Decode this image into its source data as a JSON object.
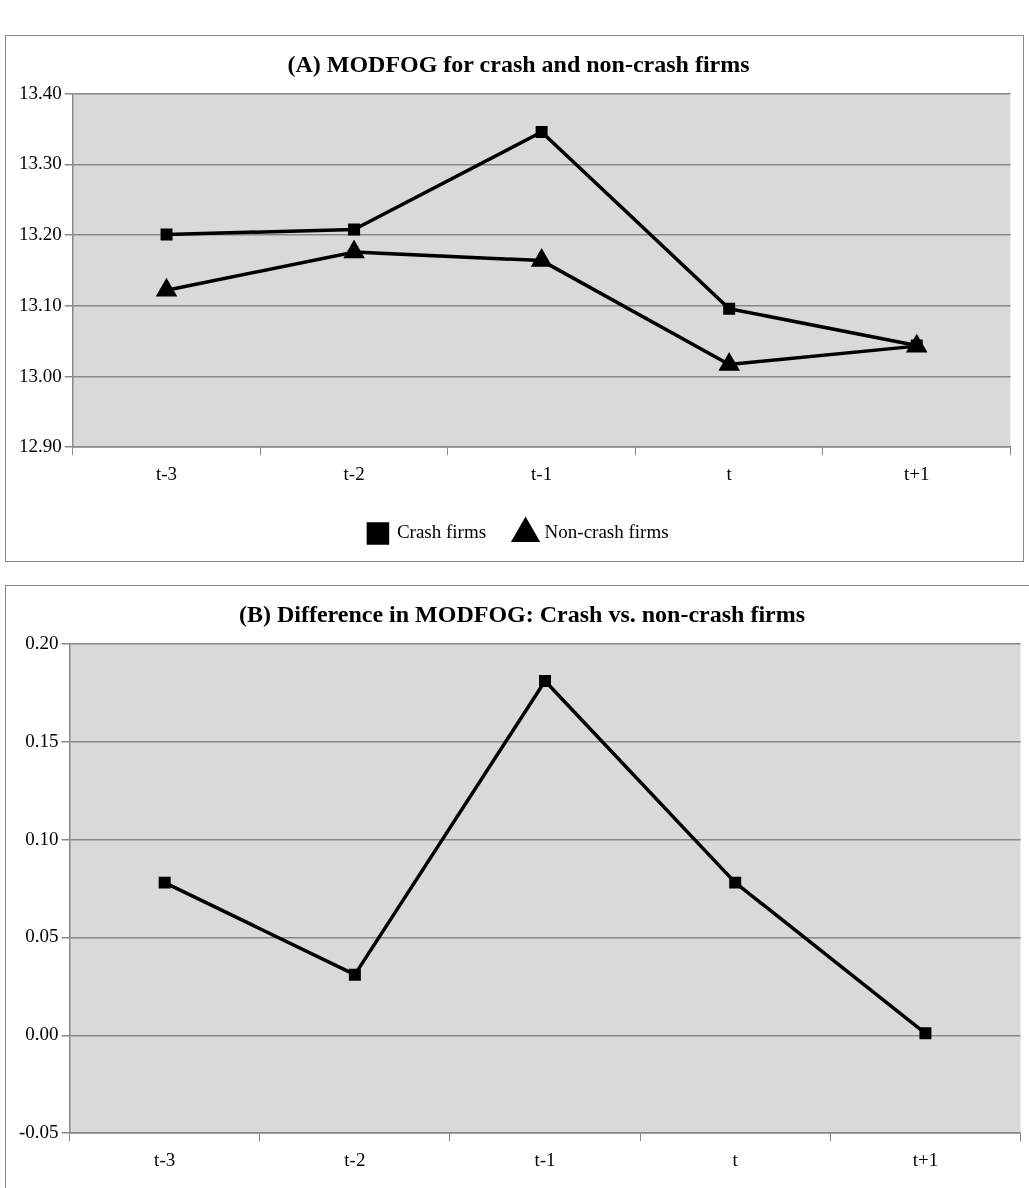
{
  "chart_data": [
    {
      "type": "line",
      "title": "(A) MODFOG for crash and non-crash firms",
      "categories": [
        "t-3",
        "t-2",
        "t-1",
        "t",
        "t+1"
      ],
      "series": [
        {
          "name": "Crash firms",
          "color": "#000000",
          "marker": "square",
          "values": [
            13.201,
            13.208,
            13.346,
            13.096,
            13.044
          ]
        },
        {
          "name": "Non-crash firms",
          "color": "#000000",
          "marker": "triangle",
          "values": [
            13.122,
            13.176,
            13.164,
            13.017,
            13.043
          ]
        }
      ],
      "ylim": [
        12.9,
        13.4
      ],
      "yticks": [
        {
          "value": 12.9,
          "label": "12.90"
        },
        {
          "value": 13.0,
          "label": "13.00"
        },
        {
          "value": 13.1,
          "label": "13.10"
        },
        {
          "value": 13.2,
          "label": "13.20"
        },
        {
          "value": 13.3,
          "label": "13.30"
        },
        {
          "value": 13.4,
          "label": "13.40"
        }
      ],
      "grid": "y",
      "legend": "bottom",
      "line_style": "solid"
    },
    {
      "type": "line",
      "title": "(B) Difference in MODFOG: Crash vs. non-crash firms",
      "categories": [
        "t-3",
        "t-2",
        "t-1",
        "t",
        "t+1"
      ],
      "series": [
        {
          "color": "#000000",
          "marker": "square",
          "values": [
            0.078,
            0.031,
            0.181,
            0.078,
            0.001
          ]
        }
      ],
      "ylim": [
        -0.05,
        0.2
      ],
      "yticks": [
        {
          "value": -0.05,
          "label": "-0.05"
        },
        {
          "value": 0,
          "label": "0.00"
        },
        {
          "value": 0.05,
          "label": "0.05"
        },
        {
          "value": 0.1,
          "label": "0.10"
        },
        {
          "value": 0.15,
          "label": "0.15"
        },
        {
          "value": 0.2,
          "label": "0.20"
        }
      ],
      "grid": "y",
      "legend": false,
      "line_style": "solid"
    }
  ]
}
